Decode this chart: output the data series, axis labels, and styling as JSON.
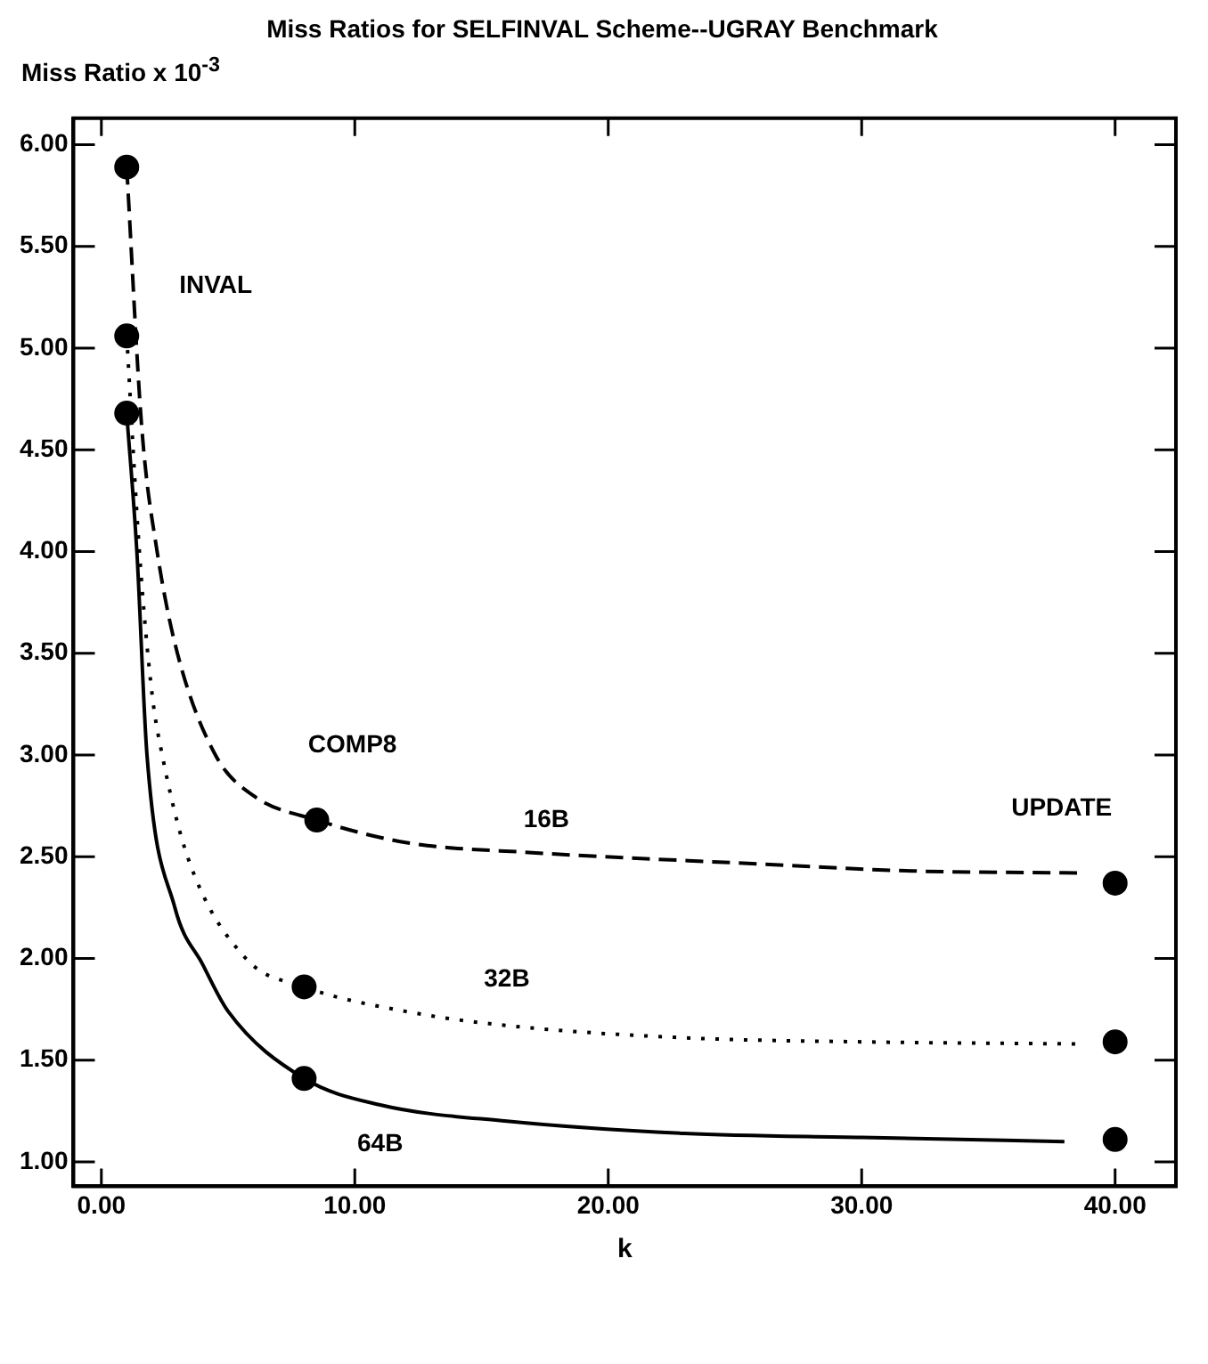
{
  "chart_data": {
    "type": "line",
    "title": "Miss Ratios for SELFINVAL Scheme--UGRAY Benchmark",
    "xlabel": "k",
    "ylabel": "Miss Ratio x 10$^{-3}$",
    "xlim": [
      -1.1,
      42.4
    ],
    "ylim": [
      0.88,
      6.13
    ],
    "xticks": [
      {
        "value": 0,
        "label": "0.00"
      },
      {
        "value": 10,
        "label": "10.00"
      },
      {
        "value": 20,
        "label": "20.00"
      },
      {
        "value": 30,
        "label": "30.00"
      },
      {
        "value": 40,
        "label": "40.00"
      }
    ],
    "yticks": [
      {
        "value": 1,
        "label": "1.00"
      },
      {
        "value": 1.5,
        "label": "1.50"
      },
      {
        "value": 2,
        "label": "2.00"
      },
      {
        "value": 2.5,
        "label": "2.50"
      },
      {
        "value": 3,
        "label": "3.00"
      },
      {
        "value": 3.5,
        "label": "3.50"
      },
      {
        "value": 4,
        "label": "4.00"
      },
      {
        "value": 4.5,
        "label": "4.50"
      },
      {
        "value": 5,
        "label": "5.00"
      },
      {
        "value": 5.5,
        "label": "5.50"
      },
      {
        "value": 6,
        "label": "6.00"
      }
    ],
    "grid": false,
    "legend": false,
    "series": [
      {
        "name": "16B",
        "color": "#000000",
        "line_style": "dashed",
        "marker": "none",
        "x": [
          1,
          1.6,
          2.2,
          3,
          4.5,
          6,
          8.5,
          12,
          17,
          25,
          32,
          38.5
        ],
        "values": [
          5.89,
          4.6,
          4.0,
          3.5,
          3.0,
          2.8,
          2.68,
          2.57,
          2.52,
          2.47,
          2.43,
          2.42
        ]
      },
      {
        "name": "32B",
        "color": "#000000",
        "line_style": "dotted",
        "marker": "none",
        "x": [
          1,
          1.5,
          2,
          2.4,
          3.4,
          5.7,
          8,
          12,
          16,
          23,
          30,
          38.5
        ],
        "values": [
          5.06,
          4.0,
          3.3,
          3.0,
          2.5,
          2.0,
          1.86,
          1.74,
          1.67,
          1.61,
          1.59,
          1.58
        ]
      },
      {
        "name": "64B",
        "color": "#000000",
        "line_style": "solid",
        "marker": "none",
        "x": [
          1,
          1.4,
          1.8,
          2.9,
          4,
          5,
          8,
          11,
          16,
          23,
          30,
          38
        ],
        "values": [
          4.68,
          4.0,
          3.0,
          2.25,
          1.97,
          1.74,
          1.41,
          1.28,
          1.2,
          1.14,
          1.12,
          1.1
        ]
      },
      {
        "type": "scatter",
        "color": "#000000",
        "marker": "circle",
        "x": [
          1,
          1,
          1,
          8.5,
          8,
          8,
          40,
          40,
          40
        ],
        "values": [
          5.89,
          5.06,
          4.68,
          2.68,
          1.86,
          1.41,
          2.37,
          1.59,
          1.11
        ]
      }
    ],
    "annotations": [
      "INVAL",
      "COMP8",
      "UPDATE"
    ]
  }
}
